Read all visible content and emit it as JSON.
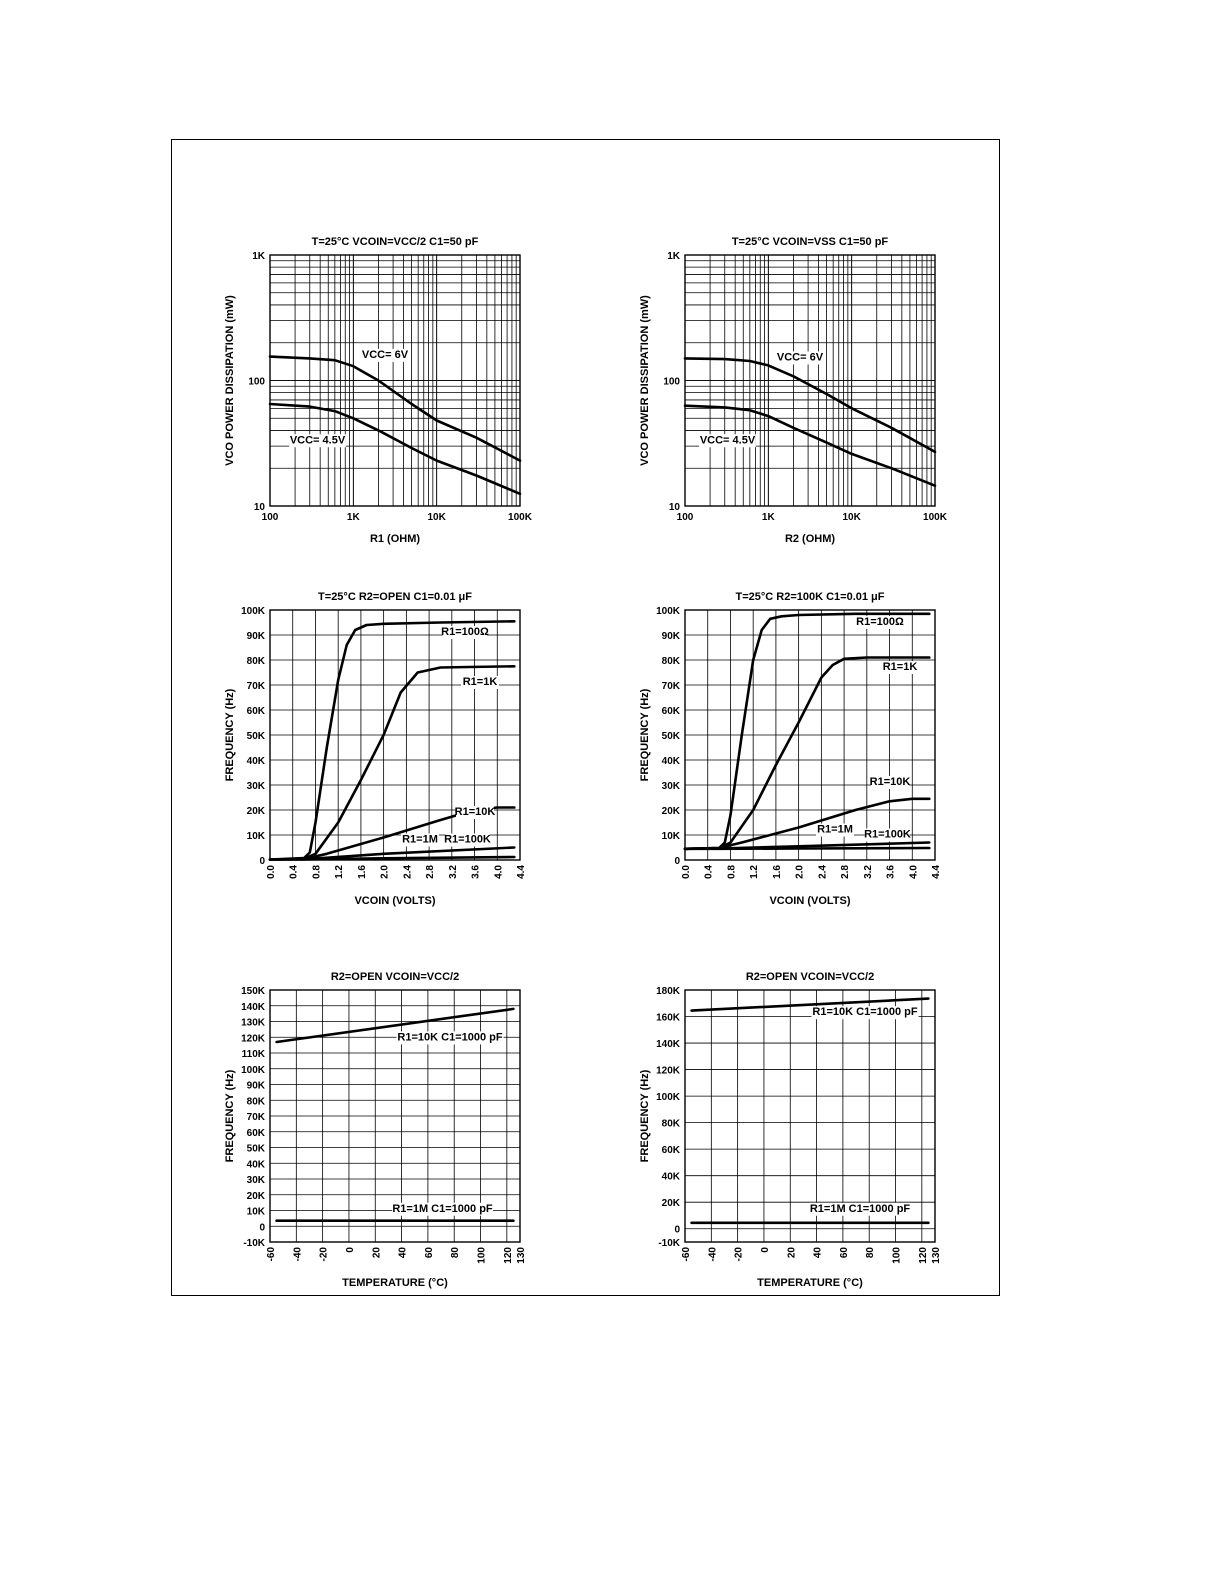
{
  "chart_data": [
    {
      "type": "line",
      "title": "T=25°C  VCOIN=VCC/2  C1=50 pF",
      "xlabel": "R1 (OHM)",
      "ylabel": "VCO POWER DISSIPATION (mW)",
      "x_scale": "log",
      "y_scale": "log",
      "xlim": [
        100,
        100000
      ],
      "ylim": [
        10,
        1000
      ],
      "x_ticks": [
        100,
        1000,
        10000,
        100000
      ],
      "x_tick_labels": [
        "100",
        "1K",
        "10K",
        "100K"
      ],
      "y_ticks": [
        10,
        100,
        1000
      ],
      "y_tick_labels": [
        "10",
        "100",
        "1K"
      ],
      "grid": true,
      "series": [
        {
          "name": "VCC= 6V",
          "x": [
            100,
            300,
            600,
            1000,
            2000,
            5000,
            10000,
            30000,
            100000
          ],
          "y": [
            155,
            150,
            145,
            130,
            100,
            65,
            48,
            35,
            23
          ]
        },
        {
          "name": "VCC= 4.5V",
          "x": [
            100,
            300,
            600,
            1000,
            2000,
            5000,
            10000,
            30000,
            100000
          ],
          "y": [
            65,
            62,
            57,
            50,
            40,
            29,
            23,
            17.5,
            12.5
          ]
        }
      ]
    },
    {
      "type": "line",
      "title": "T=25°C  VCOIN=VSS  C1=50 pF",
      "xlabel": "R2 (OHM)",
      "ylabel": "VCO POWER DISSIPATION (mW)",
      "x_scale": "log",
      "y_scale": "log",
      "xlim": [
        100,
        100000
      ],
      "ylim": [
        10,
        1000
      ],
      "x_ticks": [
        100,
        1000,
        10000,
        100000
      ],
      "x_tick_labels": [
        "100",
        "1K",
        "10K",
        "100K"
      ],
      "y_ticks": [
        10,
        100,
        1000
      ],
      "y_tick_labels": [
        "10",
        "100",
        "1K"
      ],
      "grid": true,
      "series": [
        {
          "name": "VCC= 6V",
          "x": [
            100,
            300,
            600,
            1000,
            2000,
            5000,
            10000,
            30000,
            100000
          ],
          "y": [
            150,
            148,
            143,
            132,
            108,
            78,
            60,
            42,
            27
          ]
        },
        {
          "name": "VCC= 4.5V",
          "x": [
            100,
            300,
            600,
            1000,
            2000,
            5000,
            10000,
            30000,
            100000
          ],
          "y": [
            63,
            61,
            58,
            52,
            42,
            32,
            26,
            20,
            14.5
          ]
        }
      ]
    },
    {
      "type": "line",
      "title": "T=25°C  R2=OPEN  C1=0.01 μF",
      "xlabel": "VCOIN (VOLTS)",
      "ylabel": "FREQUENCY (Hz)",
      "xlim": [
        0,
        4.4
      ],
      "ylim": [
        0,
        100000
      ],
      "x_ticks": [
        0,
        0.4,
        0.8,
        1.2,
        1.6,
        2.0,
        2.4,
        2.8,
        3.2,
        3.6,
        4.0,
        4.4
      ],
      "x_tick_labels": [
        "0.0",
        "0.4",
        "0.8",
        "1.2",
        "1.6",
        "2.0",
        "2.4",
        "2.8",
        "3.2",
        "3.6",
        "4.0",
        "4.4"
      ],
      "y_ticks": [
        0,
        10000,
        20000,
        30000,
        40000,
        50000,
        60000,
        70000,
        80000,
        90000,
        100000
      ],
      "y_tick_labels": [
        "0",
        "10K",
        "20K",
        "30K",
        "40K",
        "50K",
        "60K",
        "70K",
        "80K",
        "90K",
        "100K"
      ],
      "grid": true,
      "series": [
        {
          "name": "R1=100Ω",
          "x": [
            0,
            0.6,
            0.7,
            0.8,
            1.0,
            1.2,
            1.35,
            1.5,
            1.7,
            2.0,
            3.0,
            4.3
          ],
          "y": [
            200,
            800,
            3000,
            15000,
            45000,
            72000,
            86000,
            92000,
            94000,
            94500,
            95000,
            95500
          ]
        },
        {
          "name": "R1=1K",
          "x": [
            0,
            0.6,
            0.8,
            1.2,
            1.6,
            2.0,
            2.3,
            2.6,
            3.0,
            3.5,
            4.3
          ],
          "y": [
            200,
            500,
            2500,
            15000,
            32000,
            50000,
            67000,
            75000,
            77000,
            77200,
            77500
          ]
        },
        {
          "name": "R1=10K",
          "x": [
            0,
            0.6,
            1.0,
            2.0,
            3.0,
            3.6,
            4.0,
            4.3
          ],
          "y": [
            200,
            400,
            2500,
            9000,
            16000,
            20000,
            21000,
            21000
          ]
        },
        {
          "name": "R1=100K",
          "x": [
            0,
            0.6,
            2.0,
            4.3
          ],
          "y": [
            200,
            300,
            2500,
            5000
          ]
        },
        {
          "name": "R1=1M",
          "x": [
            0,
            0.6,
            2.0,
            4.3
          ],
          "y": [
            200,
            250,
            700,
            1200
          ]
        }
      ]
    },
    {
      "type": "line",
      "title": "T=25°C  R2=100K  C1=0.01 μF",
      "xlabel": "VCOIN (VOLTS)",
      "ylabel": "FREQUENCY (Hz)",
      "xlim": [
        0,
        4.4
      ],
      "ylim": [
        0,
        100000
      ],
      "x_ticks": [
        0,
        0.4,
        0.8,
        1.2,
        1.6,
        2.0,
        2.4,
        2.8,
        3.2,
        3.6,
        4.0,
        4.4
      ],
      "x_tick_labels": [
        "0.0",
        "0.4",
        "0.8",
        "1.2",
        "1.6",
        "2.0",
        "2.4",
        "2.8",
        "3.2",
        "3.6",
        "4.0",
        "4.4"
      ],
      "y_ticks": [
        0,
        10000,
        20000,
        30000,
        40000,
        50000,
        60000,
        70000,
        80000,
        90000,
        100000
      ],
      "y_tick_labels": [
        "0",
        "10K",
        "20K",
        "30K",
        "40K",
        "50K",
        "60K",
        "70K",
        "80K",
        "90K",
        "100K"
      ],
      "grid": true,
      "series": [
        {
          "name": "R1=100Ω",
          "x": [
            0,
            0.6,
            0.7,
            0.8,
            1.0,
            1.2,
            1.35,
            1.5,
            1.7,
            2.0,
            3.0,
            4.3
          ],
          "y": [
            4500,
            4800,
            7000,
            18000,
            50000,
            80000,
            92000,
            96500,
            97500,
            98000,
            98500,
            98500
          ]
        },
        {
          "name": "R1=1K",
          "x": [
            0,
            0.6,
            0.8,
            1.2,
            1.6,
            2.0,
            2.4,
            2.6,
            2.8,
            3.2,
            4.3
          ],
          "y": [
            4500,
            4800,
            7000,
            20000,
            38000,
            55000,
            73000,
            78000,
            80500,
            81000,
            81000
          ]
        },
        {
          "name": "R1=10K",
          "x": [
            0,
            0.6,
            1.0,
            2.0,
            3.0,
            3.6,
            4.0,
            4.3
          ],
          "y": [
            4500,
            4800,
            7000,
            13000,
            20000,
            23500,
            24500,
            24500
          ]
        },
        {
          "name": "R1=100K",
          "x": [
            0,
            0.6,
            2.0,
            4.3
          ],
          "y": [
            4500,
            4600,
            5500,
            7000
          ]
        },
        {
          "name": "R1=1M",
          "x": [
            0,
            0.6,
            2.0,
            4.3
          ],
          "y": [
            4500,
            4500,
            4600,
            4800
          ]
        }
      ]
    },
    {
      "type": "line",
      "title": "R2=OPEN  VCOIN=VCC/2",
      "xlabel": "TEMPERATURE (°C)",
      "ylabel": "FREQUENCY (Hz)",
      "xlim": [
        -60,
        130
      ],
      "ylim": [
        -10000,
        150000
      ],
      "x_ticks": [
        -60,
        -40,
        -20,
        0,
        20,
        40,
        60,
        80,
        100,
        120,
        130
      ],
      "x_tick_labels": [
        "-60",
        "-40",
        "-20",
        "0",
        "20",
        "40",
        "60",
        "80",
        "100",
        "120",
        "130"
      ],
      "y_ticks": [
        -10000,
        0,
        10000,
        20000,
        30000,
        40000,
        50000,
        60000,
        70000,
        80000,
        90000,
        100000,
        110000,
        120000,
        130000,
        140000,
        150000
      ],
      "y_tick_labels": [
        "-10K",
        "0",
        "10K",
        "20K",
        "30K",
        "40K",
        "50K",
        "60K",
        "70K",
        "80K",
        "90K",
        "100K",
        "110K",
        "120K",
        "130K",
        "140K",
        "150K"
      ],
      "grid": true,
      "series": [
        {
          "name": "R1=10K C1=1000 pF",
          "x": [
            -55,
            125
          ],
          "y": [
            117000,
            138000
          ]
        },
        {
          "name": "R1=1M C1=1000 pF",
          "x": [
            -55,
            125
          ],
          "y": [
            3500,
            3500
          ]
        }
      ]
    },
    {
      "type": "line",
      "title": "R2=OPEN  VCOIN=VCC/2",
      "xlabel": "TEMPERATURE (°C)",
      "ylabel": "FREQUENCY (Hz)",
      "xlim": [
        -60,
        130
      ],
      "ylim": [
        -10000,
        180000
      ],
      "x_ticks": [
        -60,
        -40,
        -20,
        0,
        20,
        40,
        60,
        80,
        100,
        120,
        130
      ],
      "x_tick_labels": [
        "-60",
        "-40",
        "-20",
        "0",
        "20",
        "40",
        "60",
        "80",
        "100",
        "120",
        "130"
      ],
      "y_ticks": [
        -10000,
        0,
        20000,
        40000,
        60000,
        80000,
        100000,
        120000,
        140000,
        160000,
        180000
      ],
      "y_tick_labels": [
        "-10K",
        "0",
        "20K",
        "40K",
        "60K",
        "80K",
        "100K",
        "120K",
        "140K",
        "160K",
        "180K"
      ],
      "grid": true,
      "series": [
        {
          "name": "R1=10K C1=1000 pF",
          "x": [
            -55,
            125
          ],
          "y": [
            164500,
            173500
          ]
        },
        {
          "name": "R1=1M C1=1000 pF",
          "x": [
            -55,
            125
          ],
          "y": [
            4500,
            4500
          ]
        }
      ]
    }
  ]
}
